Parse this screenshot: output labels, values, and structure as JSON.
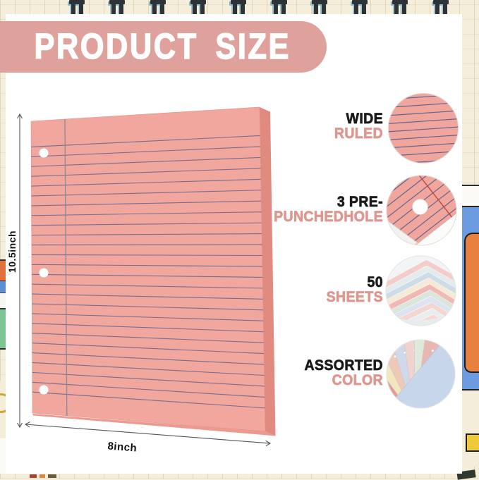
{
  "header": {
    "title": "PRODUCT SIZE"
  },
  "diagram": {
    "height_label": "10.5inch",
    "width_label": "8inch"
  },
  "features": [
    {
      "line1": "WIDE",
      "line2": "RULED"
    },
    {
      "line1": "3 PRE-",
      "line2": "PUNCHEDHOLE"
    },
    {
      "line1": "50",
      "line2": "SHEETS"
    },
    {
      "line1": "ASSORTED",
      "line2": "COLOR"
    }
  ],
  "colors": {
    "banner_pink": "#dfa19b",
    "paper_pink": "#f2a79e",
    "paper_side_pink": "#e18a80",
    "paper_bottom_pink": "#ec9a90",
    "rule_line": "#62628c",
    "margin_line": "#8b8795",
    "red_margin": "#c0473e",
    "label_pink": "#de968e",
    "label_black": "#1b1b1b",
    "dimension_line": "#555555",
    "stack_sheet_colors": [
      "#f3cdc9",
      "#e3ecea",
      "#ccdce8",
      "#f6ead6",
      "#f0b9b3",
      "#d8e6dc",
      "#dde3f0",
      "#f3d6cd",
      "#e8eef0",
      "#f6d8d2",
      "#dceae2"
    ],
    "assorted_sheet_colors": [
      "#cfe0cc",
      "#f0c9c5",
      "#e59a93",
      "#f2e6bd",
      "#eec9b8",
      "#cfd9ea",
      "#f0d3cf",
      "#dee9db",
      "#e8b7b2"
    ],
    "front_sheet_blue": "#c7d6ea"
  }
}
